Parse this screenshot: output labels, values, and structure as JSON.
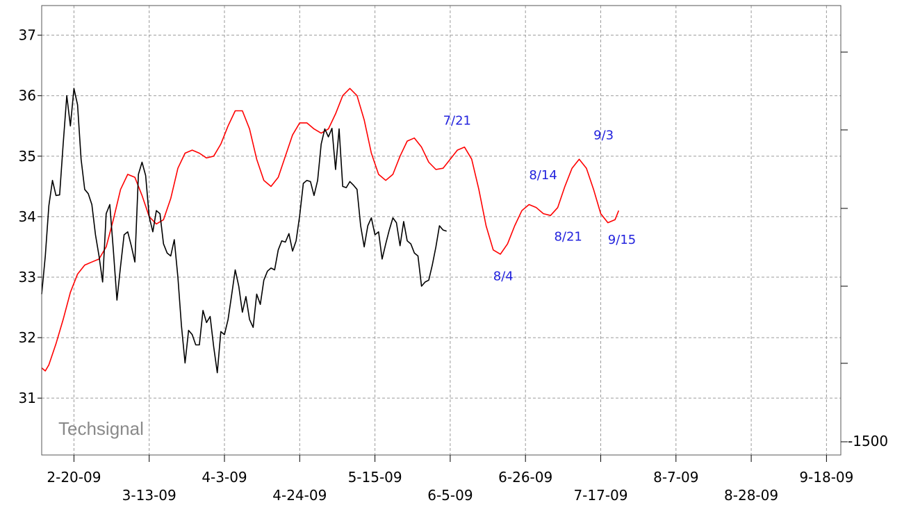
{
  "chart_data": {
    "type": "line",
    "watermark": "Techsignal",
    "grid": true,
    "colors": {
      "price": "#000000",
      "forecast": "#ff0000",
      "annotation": "#2222dd",
      "grid": "#9a9a9a"
    },
    "x_domain": [
      "2009-02-11",
      "2009-09-22"
    ],
    "ylim": [
      30.06,
      37.49
    ],
    "yticks": [
      31,
      32,
      33,
      34,
      35,
      36,
      37
    ],
    "xticks": [
      {
        "date": "2009-02-20",
        "label": "2-20-09",
        "row": 0
      },
      {
        "date": "2009-03-13",
        "label": "3-13-09",
        "row": 1
      },
      {
        "date": "2009-04-03",
        "label": "4-3-09",
        "row": 0
      },
      {
        "date": "2009-04-24",
        "label": "4-24-09",
        "row": 1
      },
      {
        "date": "2009-05-15",
        "label": "5-15-09",
        "row": 0
      },
      {
        "date": "2009-06-05",
        "label": "6-5-09",
        "row": 1
      },
      {
        "date": "2009-06-26",
        "label": "6-26-09",
        "row": 0
      },
      {
        "date": "2009-07-17",
        "label": "7-17-09",
        "row": 1
      },
      {
        "date": "2009-08-07",
        "label": "8-7-09",
        "row": 0
      },
      {
        "date": "2009-08-28",
        "label": "8-28-09",
        "row": 1
      },
      {
        "date": "2009-09-18",
        "label": "9-18-09",
        "row": 0
      }
    ],
    "right_axis_label": "-1500",
    "series": [
      {
        "key": "price",
        "color": "#000000",
        "points": [
          [
            "2009-02-11",
            32.72
          ],
          [
            "2009-02-12",
            33.35
          ],
          [
            "2009-02-13",
            34.18
          ],
          [
            "2009-02-14",
            34.6
          ],
          [
            "2009-02-15",
            34.35
          ],
          [
            "2009-02-16",
            34.36
          ],
          [
            "2009-02-17",
            35.2
          ],
          [
            "2009-02-18",
            36.0
          ],
          [
            "2009-02-19",
            35.5
          ],
          [
            "2009-02-20",
            36.12
          ],
          [
            "2009-02-21",
            35.85
          ],
          [
            "2009-02-22",
            34.95
          ],
          [
            "2009-02-23",
            34.45
          ],
          [
            "2009-02-24",
            34.38
          ],
          [
            "2009-02-25",
            34.2
          ],
          [
            "2009-02-26",
            33.7
          ],
          [
            "2009-02-27",
            33.35
          ],
          [
            "2009-02-28",
            32.92
          ],
          [
            "2009-03-01",
            34.05
          ],
          [
            "2009-03-02",
            34.2
          ],
          [
            "2009-03-03",
            33.45
          ],
          [
            "2009-03-04",
            32.62
          ],
          [
            "2009-03-05",
            33.18
          ],
          [
            "2009-03-06",
            33.7
          ],
          [
            "2009-03-07",
            33.75
          ],
          [
            "2009-03-08",
            33.52
          ],
          [
            "2009-03-09",
            33.25
          ],
          [
            "2009-03-10",
            34.7
          ],
          [
            "2009-03-11",
            34.9
          ],
          [
            "2009-03-12",
            34.68
          ],
          [
            "2009-03-13",
            34.0
          ],
          [
            "2009-03-14",
            33.75
          ],
          [
            "2009-03-15",
            34.1
          ],
          [
            "2009-03-16",
            34.05
          ],
          [
            "2009-03-17",
            33.55
          ],
          [
            "2009-03-18",
            33.4
          ],
          [
            "2009-03-19",
            33.35
          ],
          [
            "2009-03-20",
            33.62
          ],
          [
            "2009-03-21",
            33.0
          ],
          [
            "2009-03-22",
            32.2
          ],
          [
            "2009-03-23",
            31.58
          ],
          [
            "2009-03-24",
            32.12
          ],
          [
            "2009-03-25",
            32.05
          ],
          [
            "2009-03-26",
            31.88
          ],
          [
            "2009-03-27",
            31.88
          ],
          [
            "2009-03-28",
            32.45
          ],
          [
            "2009-03-29",
            32.25
          ],
          [
            "2009-03-30",
            32.35
          ],
          [
            "2009-03-31",
            31.85
          ],
          [
            "2009-04-01",
            31.42
          ],
          [
            "2009-04-02",
            32.1
          ],
          [
            "2009-04-03",
            32.05
          ],
          [
            "2009-04-04",
            32.3
          ],
          [
            "2009-04-05",
            32.7
          ],
          [
            "2009-04-06",
            33.12
          ],
          [
            "2009-04-07",
            32.85
          ],
          [
            "2009-04-08",
            32.42
          ],
          [
            "2009-04-09",
            32.68
          ],
          [
            "2009-04-10",
            32.3
          ],
          [
            "2009-04-11",
            32.17
          ],
          [
            "2009-04-12",
            32.72
          ],
          [
            "2009-04-13",
            32.55
          ],
          [
            "2009-04-14",
            32.95
          ],
          [
            "2009-04-15",
            33.1
          ],
          [
            "2009-04-16",
            33.15
          ],
          [
            "2009-04-17",
            33.12
          ],
          [
            "2009-04-18",
            33.45
          ],
          [
            "2009-04-19",
            33.6
          ],
          [
            "2009-04-20",
            33.58
          ],
          [
            "2009-04-21",
            33.72
          ],
          [
            "2009-04-22",
            33.43
          ],
          [
            "2009-04-23",
            33.6
          ],
          [
            "2009-04-24",
            34.02
          ],
          [
            "2009-04-25",
            34.55
          ],
          [
            "2009-04-26",
            34.6
          ],
          [
            "2009-04-27",
            34.58
          ],
          [
            "2009-04-28",
            34.35
          ],
          [
            "2009-04-29",
            34.6
          ],
          [
            "2009-04-30",
            35.2
          ],
          [
            "2009-05-01",
            35.45
          ],
          [
            "2009-05-02",
            35.32
          ],
          [
            "2009-05-03",
            35.46
          ],
          [
            "2009-05-04",
            34.78
          ],
          [
            "2009-05-05",
            35.45
          ],
          [
            "2009-05-06",
            34.5
          ],
          [
            "2009-05-07",
            34.48
          ],
          [
            "2009-05-08",
            34.58
          ],
          [
            "2009-05-09",
            34.52
          ],
          [
            "2009-05-10",
            34.45
          ],
          [
            "2009-05-11",
            33.85
          ],
          [
            "2009-05-12",
            33.5
          ],
          [
            "2009-05-13",
            33.85
          ],
          [
            "2009-05-14",
            33.98
          ],
          [
            "2009-05-15",
            33.7
          ],
          [
            "2009-05-16",
            33.75
          ],
          [
            "2009-05-17",
            33.3
          ],
          [
            "2009-05-18",
            33.55
          ],
          [
            "2009-05-19",
            33.78
          ],
          [
            "2009-05-20",
            33.98
          ],
          [
            "2009-05-21",
            33.9
          ],
          [
            "2009-05-22",
            33.52
          ],
          [
            "2009-05-23",
            33.92
          ],
          [
            "2009-05-24",
            33.6
          ],
          [
            "2009-05-25",
            33.55
          ],
          [
            "2009-05-26",
            33.4
          ],
          [
            "2009-05-27",
            33.35
          ],
          [
            "2009-05-28",
            32.85
          ],
          [
            "2009-05-29",
            32.92
          ],
          [
            "2009-05-30",
            32.95
          ],
          [
            "2009-05-31",
            33.2
          ],
          [
            "2009-06-01",
            33.5
          ],
          [
            "2009-06-02",
            33.85
          ],
          [
            "2009-06-03",
            33.78
          ],
          [
            "2009-06-04",
            33.76
          ]
        ]
      },
      {
        "key": "forecast",
        "color": "#ff0000",
        "points": [
          [
            "2009-02-11",
            31.5
          ],
          [
            "2009-02-12",
            31.45
          ],
          [
            "2009-02-13",
            31.55
          ],
          [
            "2009-02-15",
            31.9
          ],
          [
            "2009-02-17",
            32.3
          ],
          [
            "2009-02-19",
            32.75
          ],
          [
            "2009-02-21",
            33.05
          ],
          [
            "2009-02-23",
            33.2
          ],
          [
            "2009-02-25",
            33.25
          ],
          [
            "2009-02-27",
            33.3
          ],
          [
            "2009-03-01",
            33.5
          ],
          [
            "2009-03-03",
            33.95
          ],
          [
            "2009-03-05",
            34.45
          ],
          [
            "2009-03-07",
            34.7
          ],
          [
            "2009-03-09",
            34.65
          ],
          [
            "2009-03-11",
            34.35
          ],
          [
            "2009-03-13",
            34.0
          ],
          [
            "2009-03-15",
            33.88
          ],
          [
            "2009-03-17",
            33.95
          ],
          [
            "2009-03-19",
            34.3
          ],
          [
            "2009-03-21",
            34.8
          ],
          [
            "2009-03-23",
            35.05
          ],
          [
            "2009-03-25",
            35.1
          ],
          [
            "2009-03-27",
            35.05
          ],
          [
            "2009-03-29",
            34.97
          ],
          [
            "2009-03-31",
            35.0
          ],
          [
            "2009-04-02",
            35.2
          ],
          [
            "2009-04-04",
            35.5
          ],
          [
            "2009-04-06",
            35.75
          ],
          [
            "2009-04-08",
            35.75
          ],
          [
            "2009-04-10",
            35.45
          ],
          [
            "2009-04-12",
            34.95
          ],
          [
            "2009-04-14",
            34.6
          ],
          [
            "2009-04-16",
            34.5
          ],
          [
            "2009-04-18",
            34.65
          ],
          [
            "2009-04-20",
            35.0
          ],
          [
            "2009-04-22",
            35.35
          ],
          [
            "2009-04-24",
            35.55
          ],
          [
            "2009-04-26",
            35.55
          ],
          [
            "2009-04-28",
            35.45
          ],
          [
            "2009-04-30",
            35.38
          ],
          [
            "2009-05-02",
            35.45
          ],
          [
            "2009-05-04",
            35.7
          ],
          [
            "2009-05-06",
            36.0
          ],
          [
            "2009-05-08",
            36.12
          ],
          [
            "2009-05-10",
            36.0
          ],
          [
            "2009-05-12",
            35.6
          ],
          [
            "2009-05-14",
            35.05
          ],
          [
            "2009-05-16",
            34.7
          ],
          [
            "2009-05-18",
            34.6
          ],
          [
            "2009-05-20",
            34.7
          ],
          [
            "2009-05-22",
            35.0
          ],
          [
            "2009-05-24",
            35.25
          ],
          [
            "2009-05-26",
            35.3
          ],
          [
            "2009-05-28",
            35.15
          ],
          [
            "2009-05-30",
            34.9
          ],
          [
            "2009-06-01",
            34.78
          ],
          [
            "2009-06-03",
            34.8
          ],
          [
            "2009-06-05",
            34.95
          ],
          [
            "2009-06-07",
            35.1
          ],
          [
            "2009-06-09",
            35.15
          ],
          [
            "2009-06-11",
            34.95
          ],
          [
            "2009-06-13",
            34.45
          ],
          [
            "2009-06-15",
            33.85
          ],
          [
            "2009-06-17",
            33.45
          ],
          [
            "2009-06-19",
            33.38
          ],
          [
            "2009-06-21",
            33.55
          ],
          [
            "2009-06-23",
            33.85
          ],
          [
            "2009-06-25",
            34.1
          ],
          [
            "2009-06-27",
            34.2
          ],
          [
            "2009-06-29",
            34.15
          ],
          [
            "2009-07-01",
            34.05
          ],
          [
            "2009-07-03",
            34.02
          ],
          [
            "2009-07-05",
            34.15
          ],
          [
            "2009-07-07",
            34.5
          ],
          [
            "2009-07-09",
            34.8
          ],
          [
            "2009-07-11",
            34.95
          ],
          [
            "2009-07-13",
            34.8
          ],
          [
            "2009-07-15",
            34.45
          ],
          [
            "2009-07-17",
            34.05
          ],
          [
            "2009-07-19",
            33.9
          ],
          [
            "2009-07-21",
            33.95
          ],
          [
            "2009-07-22",
            34.1
          ]
        ]
      }
    ],
    "annotations": [
      {
        "label": "7/21",
        "date": "2009-06-03",
        "value": 35.52
      },
      {
        "label": "8/4",
        "date": "2009-06-17",
        "value": 32.95
      },
      {
        "label": "8/14",
        "date": "2009-06-27",
        "value": 34.62
      },
      {
        "label": "8/21",
        "date": "2009-07-04",
        "value": 33.6
      },
      {
        "label": "9/3",
        "date": "2009-07-15",
        "value": 35.28
      },
      {
        "label": "9/15",
        "date": "2009-07-19",
        "value": 33.55
      }
    ]
  }
}
